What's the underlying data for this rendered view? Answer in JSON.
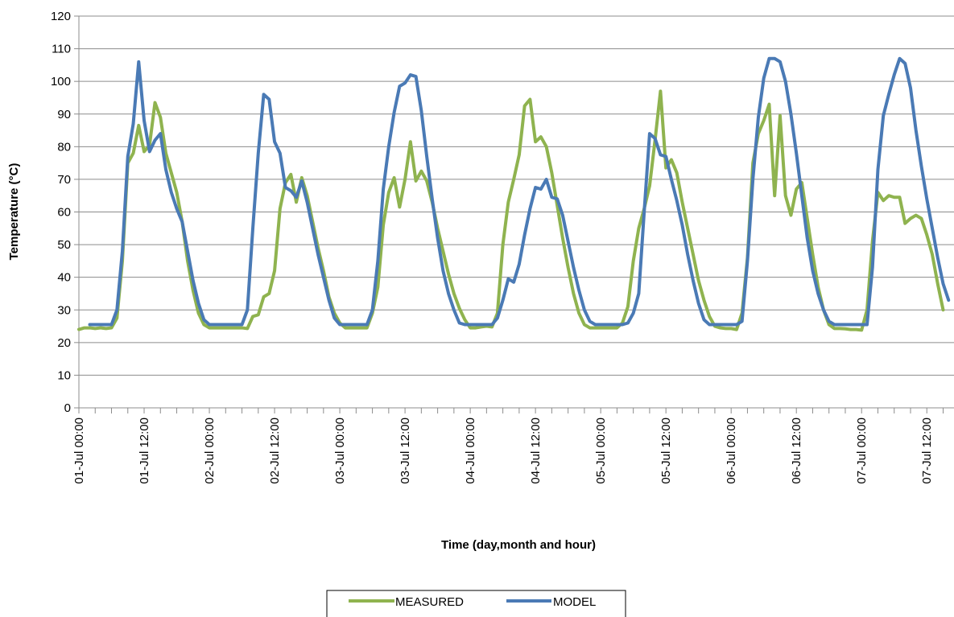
{
  "chart_data": {
    "type": "line",
    "xlabel": "Time (day,month and hour)",
    "ylabel": "Temperature (°C)",
    "ylim": [
      0,
      120
    ],
    "yticks": [
      0,
      10,
      20,
      30,
      40,
      50,
      60,
      70,
      80,
      90,
      100,
      110,
      120
    ],
    "xlim_hours": [
      0,
      161
    ],
    "grid": "horizontal",
    "legend_position": "bottom",
    "x_tick_labels": [
      {
        "hour": 0,
        "label": "01-Jul  00:00"
      },
      {
        "hour": 12,
        "label": "01-Jul  12:00"
      },
      {
        "hour": 24,
        "label": "02-Jul  00:00"
      },
      {
        "hour": 36,
        "label": "02-Jul  12:00"
      },
      {
        "hour": 48,
        "label": "03-Jul  00:00"
      },
      {
        "hour": 60,
        "label": "03-Jul  12:00"
      },
      {
        "hour": 72,
        "label": "04-Jul  00:00"
      },
      {
        "hour": 84,
        "label": "04-Jul  12:00"
      },
      {
        "hour": 96,
        "label": "05-Jul  00:00"
      },
      {
        "hour": 108,
        "label": "05-Jul  12:00"
      },
      {
        "hour": 120,
        "label": "06-Jul  00:00"
      },
      {
        "hour": 132,
        "label": "06-Jul  12:00"
      },
      {
        "hour": 144,
        "label": "07-Jul  00:00"
      },
      {
        "hour": 156,
        "label": "07-Jul  12:00"
      }
    ],
    "series": [
      {
        "name": "MEASURED",
        "color": "#8fb34f",
        "points": [
          [
            0,
            24
          ],
          [
            1,
            24.5
          ],
          [
            2,
            24.5
          ],
          [
            3,
            24.3
          ],
          [
            4,
            24.5
          ],
          [
            5,
            24.3
          ],
          [
            6,
            24.5
          ],
          [
            7,
            27.5
          ],
          [
            8,
            45
          ],
          [
            9,
            75
          ],
          [
            10,
            78
          ],
          [
            11,
            86.5
          ],
          [
            12,
            78.5
          ],
          [
            13,
            80.5
          ],
          [
            14,
            93.5
          ],
          [
            15,
            89
          ],
          [
            16,
            78
          ],
          [
            17,
            72
          ],
          [
            18,
            66
          ],
          [
            19,
            57
          ],
          [
            20,
            45
          ],
          [
            21,
            36
          ],
          [
            22,
            29
          ],
          [
            23,
            25.5
          ],
          [
            24,
            24.5
          ],
          [
            25,
            24.5
          ],
          [
            26,
            24.5
          ],
          [
            27,
            24.5
          ],
          [
            28,
            24.5
          ],
          [
            29,
            24.5
          ],
          [
            30,
            24.5
          ],
          [
            31,
            24.3
          ],
          [
            32,
            28
          ],
          [
            33,
            28.5
          ],
          [
            34,
            34
          ],
          [
            35,
            35
          ],
          [
            36,
            42
          ],
          [
            37,
            61
          ],
          [
            38,
            69
          ],
          [
            39,
            71.5
          ],
          [
            40,
            63
          ],
          [
            41,
            70.5
          ],
          [
            42,
            65
          ],
          [
            43,
            57
          ],
          [
            44,
            49
          ],
          [
            45,
            42
          ],
          [
            46,
            34
          ],
          [
            47,
            29
          ],
          [
            48,
            26
          ],
          [
            49,
            24.5
          ],
          [
            50,
            24.5
          ],
          [
            51,
            24.5
          ],
          [
            52,
            24.5
          ],
          [
            53,
            24.5
          ],
          [
            54,
            29
          ],
          [
            55,
            37
          ],
          [
            56,
            56
          ],
          [
            57,
            66
          ],
          [
            58,
            70.5
          ],
          [
            59,
            61.5
          ],
          [
            60,
            70
          ],
          [
            61,
            81.5
          ],
          [
            62,
            69.5
          ],
          [
            63,
            72.5
          ],
          [
            64,
            69.5
          ],
          [
            65,
            63
          ],
          [
            66,
            55
          ],
          [
            67,
            48
          ],
          [
            68,
            41
          ],
          [
            69,
            35
          ],
          [
            70,
            30.5
          ],
          [
            71,
            27
          ],
          [
            72,
            24.5
          ],
          [
            73,
            24.5
          ],
          [
            74,
            24.8
          ],
          [
            75,
            25
          ],
          [
            76,
            24.8
          ],
          [
            77,
            29
          ],
          [
            78,
            50
          ],
          [
            79,
            63
          ],
          [
            80,
            70
          ],
          [
            81,
            77.5
          ],
          [
            82,
            92.5
          ],
          [
            83,
            94.5
          ],
          [
            84,
            81.5
          ],
          [
            85,
            83
          ],
          [
            86,
            80
          ],
          [
            87,
            72
          ],
          [
            88,
            62
          ],
          [
            89,
            52
          ],
          [
            90,
            43
          ],
          [
            91,
            35
          ],
          [
            92,
            29
          ],
          [
            93,
            25.5
          ],
          [
            94,
            24.5
          ],
          [
            95,
            24.5
          ],
          [
            96,
            24.5
          ],
          [
            97,
            24.5
          ],
          [
            98,
            24.5
          ],
          [
            99,
            24.5
          ],
          [
            100,
            26
          ],
          [
            101,
            31
          ],
          [
            102,
            45
          ],
          [
            103,
            55
          ],
          [
            104,
            61
          ],
          [
            105,
            68
          ],
          [
            106,
            82
          ],
          [
            107,
            97
          ],
          [
            108,
            73.5
          ],
          [
            109,
            76
          ],
          [
            110,
            72
          ],
          [
            111,
            63
          ],
          [
            112,
            55
          ],
          [
            113,
            47
          ],
          [
            114,
            39
          ],
          [
            115,
            33
          ],
          [
            116,
            28
          ],
          [
            117,
            25
          ],
          [
            118,
            24.5
          ],
          [
            119,
            24.3
          ],
          [
            120,
            24.3
          ],
          [
            121,
            24
          ],
          [
            122,
            29
          ],
          [
            123,
            46
          ],
          [
            124,
            75
          ],
          [
            125,
            84
          ],
          [
            126,
            88
          ],
          [
            127,
            93
          ],
          [
            128,
            65
          ],
          [
            129,
            89.5
          ],
          [
            130,
            65
          ],
          [
            131,
            59
          ],
          [
            132,
            67
          ],
          [
            133,
            69
          ],
          [
            134,
            58
          ],
          [
            135,
            47
          ],
          [
            136,
            37
          ],
          [
            137,
            30
          ],
          [
            138,
            25.5
          ],
          [
            139,
            24.3
          ],
          [
            140,
            24.3
          ],
          [
            141,
            24.2
          ],
          [
            142,
            24
          ],
          [
            143,
            24
          ],
          [
            144,
            23.8
          ],
          [
            145,
            30
          ],
          [
            146,
            51
          ],
          [
            147,
            66
          ],
          [
            148,
            63.5
          ],
          [
            149,
            65
          ],
          [
            150,
            64.5
          ],
          [
            151,
            64.5
          ],
          [
            152,
            56.5
          ],
          [
            153,
            58
          ],
          [
            154,
            59
          ],
          [
            155,
            58
          ],
          [
            156,
            53
          ],
          [
            157,
            47
          ],
          [
            158,
            38
          ],
          [
            159,
            30
          ]
        ]
      },
      {
        "name": "MODEL",
        "color": "#4a7ab5",
        "points": [
          [
            2,
            25.5
          ],
          [
            3,
            25.5
          ],
          [
            4,
            25.5
          ],
          [
            5,
            25.5
          ],
          [
            6,
            25.5
          ],
          [
            7,
            30
          ],
          [
            8,
            48
          ],
          [
            9,
            77
          ],
          [
            10,
            87
          ],
          [
            11,
            106
          ],
          [
            12,
            88
          ],
          [
            13,
            78.5
          ],
          [
            14,
            82
          ],
          [
            15,
            84
          ],
          [
            16,
            73
          ],
          [
            17,
            66
          ],
          [
            18,
            61
          ],
          [
            19,
            57
          ],
          [
            20,
            48
          ],
          [
            21,
            39
          ],
          [
            22,
            32
          ],
          [
            23,
            27
          ],
          [
            24,
            25.5
          ],
          [
            25,
            25.5
          ],
          [
            26,
            25.5
          ],
          [
            27,
            25.5
          ],
          [
            28,
            25.5
          ],
          [
            29,
            25.5
          ],
          [
            30,
            25.5
          ],
          [
            31,
            30
          ],
          [
            32,
            55
          ],
          [
            33,
            78
          ],
          [
            34,
            96
          ],
          [
            35,
            94.5
          ],
          [
            36,
            81.5
          ],
          [
            37,
            78
          ],
          [
            38,
            67.5
          ],
          [
            39,
            66.5
          ],
          [
            40,
            64.5
          ],
          [
            41,
            69.5
          ],
          [
            42,
            63
          ],
          [
            43,
            55
          ],
          [
            44,
            47
          ],
          [
            45,
            40
          ],
          [
            46,
            33
          ],
          [
            47,
            27.5
          ],
          [
            48,
            25.5
          ],
          [
            49,
            25.5
          ],
          [
            50,
            25.5
          ],
          [
            51,
            25.5
          ],
          [
            52,
            25.5
          ],
          [
            53,
            25.5
          ],
          [
            54,
            30
          ],
          [
            55,
            45
          ],
          [
            56,
            67
          ],
          [
            57,
            80
          ],
          [
            58,
            90.5
          ],
          [
            59,
            98.5
          ],
          [
            60,
            99.5
          ],
          [
            61,
            102
          ],
          [
            62,
            101.5
          ],
          [
            63,
            91
          ],
          [
            64,
            77
          ],
          [
            65,
            64
          ],
          [
            66,
            52
          ],
          [
            67,
            42
          ],
          [
            68,
            35
          ],
          [
            69,
            30
          ],
          [
            70,
            26
          ],
          [
            71,
            25.5
          ],
          [
            72,
            25.5
          ],
          [
            73,
            25.5
          ],
          [
            74,
            25.5
          ],
          [
            75,
            25.5
          ],
          [
            76,
            25.5
          ],
          [
            77,
            27.5
          ],
          [
            78,
            33
          ],
          [
            79,
            39.5
          ],
          [
            80,
            38.5
          ],
          [
            81,
            44
          ],
          [
            82,
            53
          ],
          [
            83,
            61
          ],
          [
            84,
            67.5
          ],
          [
            85,
            67
          ],
          [
            86,
            70
          ],
          [
            87,
            64.5
          ],
          [
            88,
            64
          ],
          [
            89,
            59
          ],
          [
            90,
            51
          ],
          [
            91,
            43
          ],
          [
            92,
            36
          ],
          [
            93,
            30
          ],
          [
            94,
            26.5
          ],
          [
            95,
            25.5
          ],
          [
            96,
            25.5
          ],
          [
            97,
            25.5
          ],
          [
            98,
            25.5
          ],
          [
            99,
            25.5
          ],
          [
            100,
            25.5
          ],
          [
            101,
            26
          ],
          [
            102,
            29
          ],
          [
            103,
            35
          ],
          [
            104,
            60
          ],
          [
            105,
            84
          ],
          [
            106,
            82.5
          ],
          [
            107,
            77.5
          ],
          [
            108,
            77
          ],
          [
            109,
            70
          ],
          [
            110,
            63.5
          ],
          [
            111,
            56
          ],
          [
            112,
            47
          ],
          [
            113,
            39
          ],
          [
            114,
            32
          ],
          [
            115,
            27
          ],
          [
            116,
            25.5
          ],
          [
            117,
            25.5
          ],
          [
            118,
            25.5
          ],
          [
            119,
            25.5
          ],
          [
            120,
            25.5
          ],
          [
            121,
            25.5
          ],
          [
            122,
            26.5
          ],
          [
            123,
            45
          ],
          [
            124,
            70
          ],
          [
            125,
            89
          ],
          [
            126,
            101
          ],
          [
            127,
            107
          ],
          [
            128,
            107
          ],
          [
            129,
            106
          ],
          [
            130,
            100
          ],
          [
            131,
            90
          ],
          [
            132,
            78
          ],
          [
            133,
            65
          ],
          [
            134,
            52
          ],
          [
            135,
            42
          ],
          [
            136,
            35
          ],
          [
            137,
            30
          ],
          [
            138,
            26.5
          ],
          [
            139,
            25.5
          ],
          [
            140,
            25.5
          ],
          [
            141,
            25.5
          ],
          [
            142,
            25.5
          ],
          [
            143,
            25.5
          ],
          [
            144,
            25.5
          ],
          [
            145,
            25.5
          ],
          [
            146,
            43
          ],
          [
            147,
            73
          ],
          [
            148,
            89.5
          ],
          [
            149,
            96
          ],
          [
            150,
            102
          ],
          [
            151,
            107
          ],
          [
            152,
            105.5
          ],
          [
            153,
            98
          ],
          [
            154,
            85
          ],
          [
            155,
            74
          ],
          [
            156,
            64
          ],
          [
            157,
            55
          ],
          [
            158,
            46
          ],
          [
            159,
            38
          ],
          [
            160,
            33
          ]
        ]
      }
    ]
  }
}
